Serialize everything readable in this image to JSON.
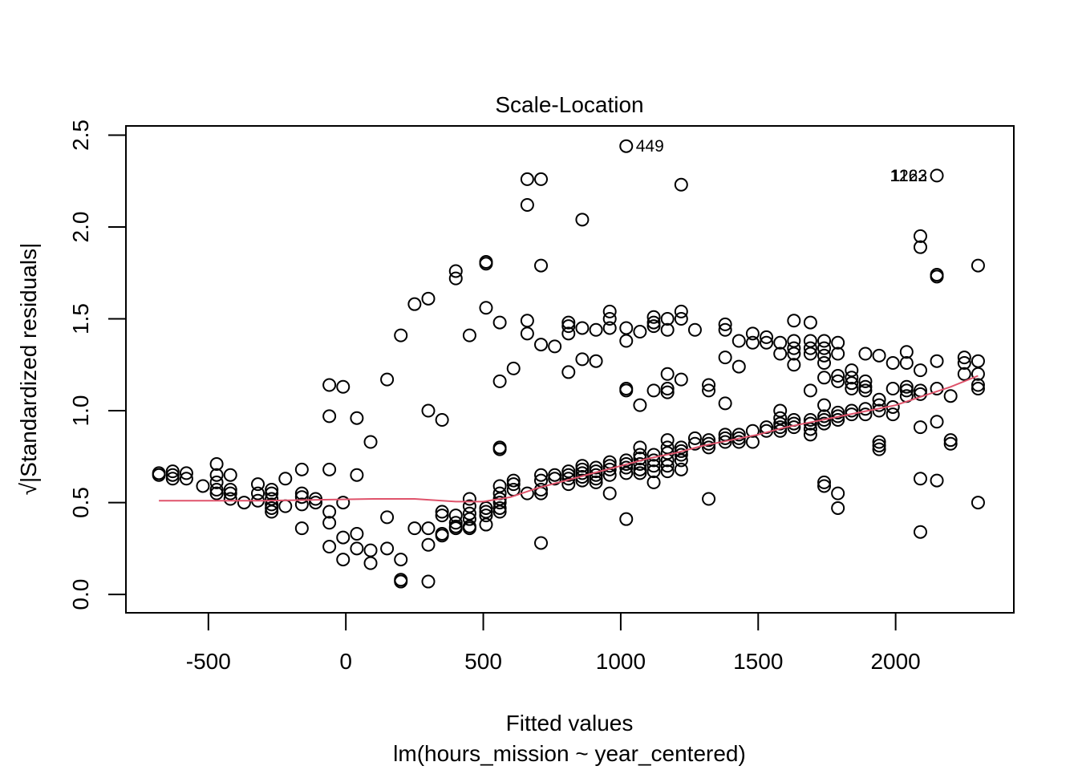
{
  "chart_data": {
    "type": "scatter",
    "title": "Scale-Location",
    "xlabel": "Fitted values",
    "sublabel": "lm(hours_mission ~ year_centered)",
    "ylabel": "√|Standardized residuals|",
    "xlim": [
      -800,
      2430
    ],
    "ylim": [
      -0.1,
      2.55
    ],
    "xticks": [
      -500,
      0,
      500,
      1000,
      1500,
      2000
    ],
    "yticks": [
      0.0,
      0.5,
      1.0,
      1.5,
      2.0,
      2.5
    ],
    "yticklabels": [
      "0.0",
      "0.5",
      "1.0",
      "1.5",
      "2.0",
      "2.5"
    ],
    "grid": false,
    "point_color": "#000000",
    "smooth_color": "#DF536B",
    "annotations": [
      {
        "text": "449",
        "x": 1020,
        "y": 2.44
      },
      {
        "text": "1122",
        "x": 2150,
        "y": 2.28
      },
      {
        "text": "1263",
        "x": 2150,
        "y": 2.28
      }
    ],
    "points": [
      [
        -680,
        0.66
      ],
      [
        -680,
        0.65
      ],
      [
        -630,
        0.67
      ],
      [
        -630,
        0.65
      ],
      [
        -630,
        0.63
      ],
      [
        -580,
        0.66
      ],
      [
        -580,
        0.63
      ],
      [
        -520,
        0.59
      ],
      [
        -470,
        0.71
      ],
      [
        -470,
        0.65
      ],
      [
        -470,
        0.61
      ],
      [
        -470,
        0.57
      ],
      [
        -470,
        0.55
      ],
      [
        -420,
        0.65
      ],
      [
        -420,
        0.57
      ],
      [
        -420,
        0.55
      ],
      [
        -420,
        0.52
      ],
      [
        -370,
        0.5
      ],
      [
        -320,
        0.6
      ],
      [
        -320,
        0.55
      ],
      [
        -320,
        0.51
      ],
      [
        -270,
        0.57
      ],
      [
        -270,
        0.55
      ],
      [
        -270,
        0.52
      ],
      [
        -270,
        0.49
      ],
      [
        -270,
        0.47
      ],
      [
        -270,
        0.45
      ],
      [
        -220,
        0.63
      ],
      [
        -220,
        0.48
      ],
      [
        -160,
        0.68
      ],
      [
        -160,
        0.55
      ],
      [
        -160,
        0.53
      ],
      [
        -160,
        0.49
      ],
      [
        -160,
        0.36
      ],
      [
        -110,
        0.52
      ],
      [
        -110,
        0.5
      ],
      [
        -60,
        1.14
      ],
      [
        -60,
        0.97
      ],
      [
        -60,
        0.68
      ],
      [
        -60,
        0.45
      ],
      [
        -60,
        0.39
      ],
      [
        -60,
        0.26
      ],
      [
        -10,
        1.13
      ],
      [
        -10,
        0.5
      ],
      [
        -10,
        0.31
      ],
      [
        -10,
        0.19
      ],
      [
        40,
        0.96
      ],
      [
        40,
        0.65
      ],
      [
        40,
        0.33
      ],
      [
        40,
        0.25
      ],
      [
        90,
        0.83
      ],
      [
        90,
        0.24
      ],
      [
        90,
        0.17
      ],
      [
        150,
        1.17
      ],
      [
        150,
        0.42
      ],
      [
        150,
        0.25
      ],
      [
        200,
        1.41
      ],
      [
        200,
        0.19
      ],
      [
        200,
        0.08
      ],
      [
        200,
        0.07
      ],
      [
        250,
        1.58
      ],
      [
        250,
        0.36
      ],
      [
        300,
        1.61
      ],
      [
        300,
        1.0
      ],
      [
        300,
        0.36
      ],
      [
        300,
        0.27
      ],
      [
        300,
        0.07
      ],
      [
        350,
        0.95
      ],
      [
        350,
        0.45
      ],
      [
        350,
        0.43
      ],
      [
        350,
        0.33
      ],
      [
        350,
        0.32
      ],
      [
        400,
        1.76
      ],
      [
        400,
        1.72
      ],
      [
        400,
        0.43
      ],
      [
        400,
        0.39
      ],
      [
        400,
        0.37
      ],
      [
        400,
        0.36
      ],
      [
        450,
        1.41
      ],
      [
        450,
        0.52
      ],
      [
        450,
        0.48
      ],
      [
        450,
        0.44
      ],
      [
        450,
        0.41
      ],
      [
        450,
        0.37
      ],
      [
        450,
        0.36
      ],
      [
        510,
        1.81
      ],
      [
        510,
        1.8
      ],
      [
        510,
        1.56
      ],
      [
        510,
        0.47
      ],
      [
        510,
        0.45
      ],
      [
        510,
        0.43
      ],
      [
        510,
        0.38
      ],
      [
        560,
        1.48
      ],
      [
        560,
        1.16
      ],
      [
        560,
        0.8
      ],
      [
        560,
        0.79
      ],
      [
        560,
        0.59
      ],
      [
        560,
        0.55
      ],
      [
        560,
        0.52
      ],
      [
        560,
        0.5
      ],
      [
        560,
        0.47
      ],
      [
        560,
        0.45
      ],
      [
        610,
        1.23
      ],
      [
        610,
        0.62
      ],
      [
        610,
        0.6
      ],
      [
        610,
        0.57
      ],
      [
        660,
        2.26
      ],
      [
        660,
        2.12
      ],
      [
        660,
        1.49
      ],
      [
        660,
        1.42
      ],
      [
        660,
        0.55
      ],
      [
        710,
        2.26
      ],
      [
        710,
        1.79
      ],
      [
        710,
        1.36
      ],
      [
        710,
        0.65
      ],
      [
        710,
        0.62
      ],
      [
        710,
        0.57
      ],
      [
        710,
        0.55
      ],
      [
        710,
        0.28
      ],
      [
        760,
        1.35
      ],
      [
        760,
        0.65
      ],
      [
        760,
        0.63
      ],
      [
        810,
        1.48
      ],
      [
        810,
        1.46
      ],
      [
        810,
        1.42
      ],
      [
        810,
        1.21
      ],
      [
        810,
        0.67
      ],
      [
        810,
        0.65
      ],
      [
        810,
        0.63
      ],
      [
        810,
        0.6
      ],
      [
        860,
        2.04
      ],
      [
        860,
        1.45
      ],
      [
        860,
        1.28
      ],
      [
        860,
        0.7
      ],
      [
        860,
        0.68
      ],
      [
        860,
        0.66
      ],
      [
        860,
        0.64
      ],
      [
        860,
        0.62
      ],
      [
        910,
        1.44
      ],
      [
        910,
        1.27
      ],
      [
        910,
        0.69
      ],
      [
        910,
        0.67
      ],
      [
        910,
        0.65
      ],
      [
        910,
        0.63
      ],
      [
        910,
        0.61
      ],
      [
        960,
        1.54
      ],
      [
        960,
        1.5
      ],
      [
        960,
        1.45
      ],
      [
        960,
        0.72
      ],
      [
        960,
        0.7
      ],
      [
        960,
        0.68
      ],
      [
        960,
        0.65
      ],
      [
        960,
        0.55
      ],
      [
        1020,
        1.45
      ],
      [
        1020,
        1.38
      ],
      [
        1020,
        1.12
      ],
      [
        1020,
        1.11
      ],
      [
        1020,
        0.73
      ],
      [
        1020,
        0.71
      ],
      [
        1020,
        0.69
      ],
      [
        1020,
        0.66
      ],
      [
        1020,
        0.41
      ],
      [
        1020,
        2.44
      ],
      [
        1070,
        1.43
      ],
      [
        1070,
        1.03
      ],
      [
        1070,
        0.8
      ],
      [
        1070,
        0.76
      ],
      [
        1070,
        0.74
      ],
      [
        1070,
        0.71
      ],
      [
        1070,
        0.68
      ],
      [
        1070,
        0.66
      ],
      [
        1120,
        1.51
      ],
      [
        1120,
        1.48
      ],
      [
        1120,
        1.46
      ],
      [
        1120,
        1.11
      ],
      [
        1120,
        0.76
      ],
      [
        1120,
        0.73
      ],
      [
        1120,
        0.7
      ],
      [
        1120,
        0.67
      ],
      [
        1120,
        0.61
      ],
      [
        1170,
        1.5
      ],
      [
        1170,
        1.44
      ],
      [
        1170,
        1.2
      ],
      [
        1170,
        1.12
      ],
      [
        1170,
        1.1
      ],
      [
        1170,
        0.84
      ],
      [
        1170,
        0.8
      ],
      [
        1170,
        0.77
      ],
      [
        1170,
        0.73
      ],
      [
        1170,
        0.7
      ],
      [
        1170,
        0.67
      ],
      [
        1220,
        2.23
      ],
      [
        1220,
        1.54
      ],
      [
        1220,
        1.5
      ],
      [
        1220,
        1.17
      ],
      [
        1220,
        0.8
      ],
      [
        1220,
        0.78
      ],
      [
        1220,
        0.76
      ],
      [
        1220,
        0.73
      ],
      [
        1220,
        0.68
      ],
      [
        1270,
        1.44
      ],
      [
        1270,
        0.85
      ],
      [
        1270,
        0.82
      ],
      [
        1320,
        1.14
      ],
      [
        1320,
        1.11
      ],
      [
        1320,
        0.84
      ],
      [
        1320,
        0.82
      ],
      [
        1320,
        0.8
      ],
      [
        1320,
        0.52
      ],
      [
        1380,
        1.47
      ],
      [
        1380,
        1.44
      ],
      [
        1380,
        1.29
      ],
      [
        1380,
        1.04
      ],
      [
        1380,
        0.87
      ],
      [
        1380,
        0.85
      ],
      [
        1380,
        0.83
      ],
      [
        1430,
        1.38
      ],
      [
        1430,
        1.24
      ],
      [
        1430,
        0.87
      ],
      [
        1430,
        0.85
      ],
      [
        1430,
        0.83
      ],
      [
        1480,
        1.42
      ],
      [
        1480,
        1.37
      ],
      [
        1480,
        0.89
      ],
      [
        1480,
        0.83
      ],
      [
        1530,
        1.4
      ],
      [
        1530,
        1.37
      ],
      [
        1530,
        0.91
      ],
      [
        1530,
        0.89
      ],
      [
        1580,
        1.37
      ],
      [
        1580,
        1.31
      ],
      [
        1580,
        1.0
      ],
      [
        1580,
        0.96
      ],
      [
        1580,
        0.93
      ],
      [
        1580,
        0.91
      ],
      [
        1580,
        0.89
      ],
      [
        1630,
        1.49
      ],
      [
        1630,
        1.38
      ],
      [
        1630,
        1.34
      ],
      [
        1630,
        1.31
      ],
      [
        1630,
        1.25
      ],
      [
        1630,
        0.95
      ],
      [
        1630,
        0.93
      ],
      [
        1630,
        0.91
      ],
      [
        1690,
        1.48
      ],
      [
        1690,
        1.38
      ],
      [
        1690,
        1.34
      ],
      [
        1690,
        1.31
      ],
      [
        1690,
        1.11
      ],
      [
        1690,
        0.95
      ],
      [
        1690,
        0.93
      ],
      [
        1690,
        0.9
      ],
      [
        1690,
        0.87
      ],
      [
        1740,
        1.38
      ],
      [
        1740,
        1.34
      ],
      [
        1740,
        1.3
      ],
      [
        1740,
        1.26
      ],
      [
        1740,
        1.18
      ],
      [
        1740,
        1.03
      ],
      [
        1740,
        0.97
      ],
      [
        1740,
        0.95
      ],
      [
        1740,
        0.93
      ],
      [
        1740,
        0.61
      ],
      [
        1740,
        0.59
      ],
      [
        1790,
        1.37
      ],
      [
        1790,
        1.31
      ],
      [
        1790,
        1.19
      ],
      [
        1790,
        1.16
      ],
      [
        1790,
        0.99
      ],
      [
        1790,
        0.97
      ],
      [
        1790,
        0.95
      ],
      [
        1790,
        0.55
      ],
      [
        1790,
        0.47
      ],
      [
        1840,
        1.22
      ],
      [
        1840,
        1.18
      ],
      [
        1840,
        1.15
      ],
      [
        1840,
        1.12
      ],
      [
        1840,
        1.0
      ],
      [
        1840,
        0.98
      ],
      [
        1890,
        1.31
      ],
      [
        1890,
        1.16
      ],
      [
        1890,
        1.13
      ],
      [
        1890,
        1.11
      ],
      [
        1890,
        1.01
      ],
      [
        1890,
        0.98
      ],
      [
        1940,
        1.3
      ],
      [
        1940,
        1.06
      ],
      [
        1940,
        1.03
      ],
      [
        1940,
        1.0
      ],
      [
        1940,
        0.83
      ],
      [
        1940,
        0.81
      ],
      [
        1940,
        0.79
      ],
      [
        1990,
        1.26
      ],
      [
        1990,
        1.12
      ],
      [
        1990,
        1.02
      ],
      [
        1990,
        0.98
      ],
      [
        2040,
        1.32
      ],
      [
        2040,
        1.26
      ],
      [
        2040,
        1.13
      ],
      [
        2040,
        1.11
      ],
      [
        2040,
        1.08
      ],
      [
        2090,
        1.95
      ],
      [
        2090,
        1.89
      ],
      [
        2090,
        1.22
      ],
      [
        2090,
        1.11
      ],
      [
        2090,
        1.09
      ],
      [
        2090,
        0.91
      ],
      [
        2090,
        0.63
      ],
      [
        2090,
        0.34
      ],
      [
        2150,
        2.28
      ],
      [
        2150,
        1.74
      ],
      [
        2150,
        1.73
      ],
      [
        2150,
        1.27
      ],
      [
        2150,
        1.12
      ],
      [
        2150,
        0.94
      ],
      [
        2150,
        0.62
      ],
      [
        2200,
        1.08
      ],
      [
        2200,
        0.84
      ],
      [
        2200,
        0.82
      ],
      [
        2250,
        1.29
      ],
      [
        2250,
        1.26
      ],
      [
        2250,
        1.2
      ],
      [
        2300,
        1.79
      ],
      [
        2300,
        1.27
      ],
      [
        2300,
        1.2
      ],
      [
        2300,
        1.14
      ],
      [
        2300,
        1.12
      ],
      [
        2300,
        0.5
      ]
    ],
    "smooth": [
      [
        -680,
        0.51
      ],
      [
        -500,
        0.51
      ],
      [
        -300,
        0.51
      ],
      [
        -100,
        0.515
      ],
      [
        100,
        0.52
      ],
      [
        250,
        0.52
      ],
      [
        400,
        0.505
      ],
      [
        500,
        0.505
      ],
      [
        600,
        0.53
      ],
      [
        700,
        0.58
      ],
      [
        800,
        0.62
      ],
      [
        900,
        0.66
      ],
      [
        1000,
        0.7
      ],
      [
        1100,
        0.74
      ],
      [
        1200,
        0.77
      ],
      [
        1300,
        0.81
      ],
      [
        1400,
        0.84
      ],
      [
        1500,
        0.87
      ],
      [
        1600,
        0.91
      ],
      [
        1700,
        0.94
      ],
      [
        1800,
        0.97
      ],
      [
        1900,
        1.0
      ],
      [
        2000,
        1.03
      ],
      [
        2100,
        1.08
      ],
      [
        2200,
        1.13
      ],
      [
        2300,
        1.19
      ]
    ]
  }
}
